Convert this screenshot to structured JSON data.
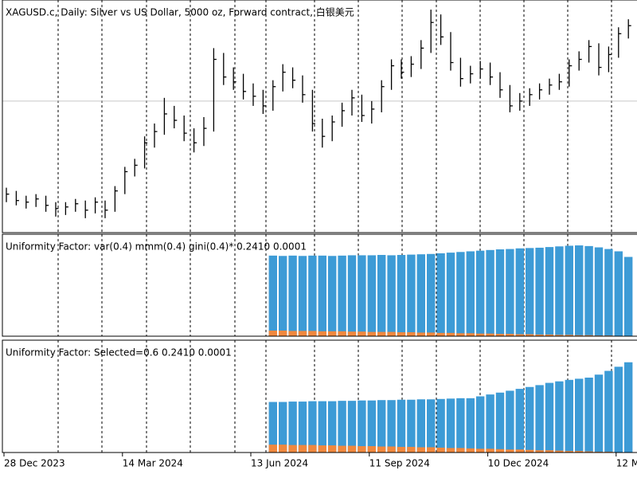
{
  "chart_data": [
    {
      "type": "hlc",
      "title": "XAGUSD.c, Daily:  Silver vs US Dollar, 5000 oz, Forward contract, 白银美元",
      "categories": [
        "28 Dec 2023",
        null,
        null,
        null,
        null,
        null,
        null,
        null,
        null,
        null,
        null,
        null,
        "14 Mar 2024",
        null,
        null,
        null,
        null,
        null,
        null,
        null,
        null,
        null,
        null,
        null,
        null,
        "13 Jun 2024",
        null,
        null,
        null,
        null,
        null,
        null,
        null,
        null,
        null,
        null,
        null,
        "11 Sep 2024",
        null,
        null,
        null,
        null,
        null,
        null,
        null,
        null,
        null,
        null,
        null,
        "10 Dec 2024",
        null,
        null,
        null,
        null,
        null,
        null,
        null,
        null,
        null,
        null,
        null,
        null,
        "12 M",
        null
      ],
      "high": [
        23.8,
        23.6,
        23.3,
        23.4,
        23.3,
        22.9,
        22.9,
        23.1,
        23.0,
        23.2,
        23.0,
        23.9,
        25.1,
        25.6,
        27.0,
        27.8,
        29.4,
        28.9,
        28.3,
        27.5,
        28.2,
        32.5,
        32.2,
        31.3,
        30.9,
        30.3,
        29.9,
        30.5,
        31.5,
        31.3,
        30.8,
        29.9,
        28.1,
        28.3,
        29.1,
        29.9,
        29.6,
        29.2,
        30.5,
        31.8,
        31.8,
        32.0,
        33.0,
        34.9,
        34.6,
        33.5,
        31.9,
        31.4,
        31.7,
        31.6,
        31.0,
        30.2,
        29.7,
        30.0,
        30.3,
        30.6,
        30.9,
        31.8,
        32.3,
        33.0,
        32.8,
        32.6,
        33.8,
        34.3
      ],
      "low": [
        22.9,
        22.7,
        22.5,
        22.6,
        22.3,
        22.0,
        22.1,
        22.3,
        21.9,
        22.2,
        21.9,
        22.3,
        23.4,
        24.5,
        25.0,
        26.3,
        27.1,
        27.5,
        26.7,
        26.0,
        26.4,
        27.3,
        30.2,
        29.9,
        29.3,
        28.9,
        28.4,
        28.6,
        29.8,
        30.0,
        29.1,
        27.3,
        26.3,
        26.7,
        27.6,
        28.3,
        27.9,
        27.8,
        28.5,
        29.9,
        30.6,
        30.7,
        31.2,
        32.2,
        32.7,
        31.1,
        30.1,
        30.3,
        30.6,
        30.2,
        29.4,
        28.5,
        28.6,
        28.9,
        29.3,
        29.6,
        29.9,
        30.1,
        31.1,
        31.6,
        30.8,
        31.0,
        31.9,
        33.1
      ],
      "close": [
        23.4,
        23.0,
        22.9,
        23.1,
        22.7,
        22.5,
        22.6,
        22.8,
        22.4,
        22.9,
        22.4,
        23.6,
        24.8,
        25.2,
        26.6,
        27.3,
        28.4,
        28.0,
        27.2,
        26.6,
        27.5,
        31.8,
        30.7,
        30.4,
        29.8,
        29.5,
        28.9,
        30.1,
        31.0,
        30.5,
        29.6,
        27.8,
        27.0,
        27.9,
        28.6,
        29.4,
        28.3,
        28.7,
        30.1,
        31.4,
        31.0,
        31.5,
        32.5,
        34.1,
        33.2,
        31.6,
        30.6,
        30.9,
        31.2,
        30.7,
        29.9,
        28.9,
        29.2,
        29.6,
        29.9,
        30.2,
        30.4,
        31.4,
        31.8,
        32.6,
        31.3,
        32.1,
        33.4,
        33.9
      ],
      "color": "#000000",
      "ylim": [
        21,
        35.5
      ],
      "hline": 29.2,
      "hline_color": "#c8c8c8"
    },
    {
      "type": "histogram",
      "title": "Uniformity Factor: var(0.4) mmm(0.4) gini(0.4)* 0.2410 0.0001",
      "series": [
        {
          "color": "#3d9bd6",
          "values": [
            null,
            null,
            null,
            null,
            null,
            null,
            null,
            null,
            null,
            null,
            null,
            null,
            null,
            null,
            null,
            null,
            null,
            null,
            null,
            null,
            null,
            null,
            null,
            null,
            null,
            null,
            null,
            0.245,
            0.244,
            0.245,
            0.244,
            0.245,
            0.245,
            0.244,
            0.245,
            0.246,
            0.246,
            0.246,
            0.247,
            0.246,
            0.247,
            0.248,
            0.249,
            0.25,
            0.252,
            0.254,
            0.256,
            0.258,
            0.26,
            0.262,
            0.264,
            0.265,
            0.267,
            0.268,
            0.269,
            0.271,
            0.273,
            0.275,
            0.276,
            0.274,
            0.27,
            0.265,
            0.258,
            0.241
          ]
        },
        {
          "color": "#f0883e",
          "values": [
            null,
            null,
            null,
            null,
            null,
            null,
            null,
            null,
            null,
            null,
            null,
            null,
            null,
            null,
            null,
            null,
            null,
            null,
            null,
            null,
            null,
            null,
            null,
            null,
            null,
            null,
            null,
            0.017,
            0.017,
            0.016,
            0.016,
            0.016,
            0.015,
            0.015,
            0.015,
            0.014,
            0.014,
            0.013,
            0.013,
            0.013,
            0.012,
            0.012,
            0.011,
            0.011,
            0.01,
            0.01,
            0.009,
            0.009,
            0.008,
            0.008,
            0.007,
            0.007,
            0.006,
            0.006,
            0.005,
            0.005,
            0.004,
            0.004,
            0.003,
            0.003,
            0.002,
            0.002,
            0.001,
            0.0001
          ]
        }
      ],
      "ylim": [
        0,
        0.31
      ]
    },
    {
      "type": "histogram",
      "title": "Uniformity Factor: Selected=0.6 0.2410 0.0001",
      "series": [
        {
          "color": "#3d9bd6",
          "values": [
            null,
            null,
            null,
            null,
            null,
            null,
            null,
            null,
            null,
            null,
            null,
            null,
            null,
            null,
            null,
            null,
            null,
            null,
            null,
            null,
            null,
            null,
            null,
            null,
            null,
            null,
            null,
            0.135,
            0.135,
            0.136,
            0.136,
            0.137,
            0.137,
            0.137,
            0.138,
            0.138,
            0.139,
            0.139,
            0.14,
            0.14,
            0.141,
            0.141,
            0.142,
            0.142,
            0.143,
            0.144,
            0.145,
            0.145,
            0.15,
            0.155,
            0.16,
            0.165,
            0.17,
            0.175,
            0.18,
            0.186,
            0.19,
            0.194,
            0.197,
            0.2,
            0.208,
            0.218,
            0.229,
            0.241
          ]
        },
        {
          "color": "#f0883e",
          "values": [
            null,
            null,
            null,
            null,
            null,
            null,
            null,
            null,
            null,
            null,
            null,
            null,
            null,
            null,
            null,
            null,
            null,
            null,
            null,
            null,
            null,
            null,
            null,
            null,
            null,
            null,
            null,
            0.021,
            0.021,
            0.02,
            0.02,
            0.02,
            0.019,
            0.019,
            0.018,
            0.018,
            0.017,
            0.017,
            0.016,
            0.016,
            0.015,
            0.015,
            0.014,
            0.014,
            0.013,
            0.012,
            0.012,
            0.011,
            0.01,
            0.01,
            0.009,
            0.008,
            0.008,
            0.007,
            0.006,
            0.006,
            0.005,
            0.004,
            0.004,
            0.003,
            0.002,
            0.002,
            0.001,
            0.0001
          ]
        }
      ],
      "ylim": [
        0,
        0.3
      ]
    }
  ]
}
